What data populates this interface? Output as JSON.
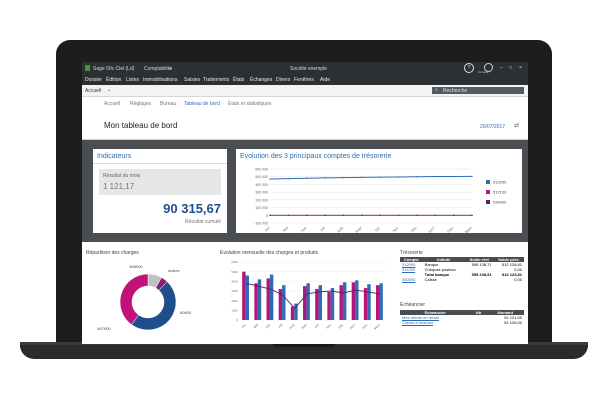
{
  "app": {
    "title": "Sage 50c Ciel (Ld)",
    "module": "Comptabilité",
    "company": "Société exemple",
    "help_icon": "help-icon",
    "user_label": "Compte",
    "colors": {
      "titlebar": "#2d3033",
      "accent_blue": "#2e6db4",
      "dark_panel": "#4a4d52"
    }
  },
  "menu": {
    "items": [
      "Dossier",
      "Édition",
      "Listes",
      "Immobilisations",
      "Saisies",
      "Traitements",
      "États",
      "Échanges",
      "Divers",
      "Fenêtres",
      "Aide"
    ]
  },
  "nav": {
    "dropdown": "Accueil",
    "search_placeholder": "Recherche"
  },
  "breadcrumb": {
    "items": [
      "Accueil",
      "Réglages",
      "Bureau",
      "Tableau de bord",
      "États et statistiques"
    ],
    "active_index": 3
  },
  "header": {
    "title": "Mon tableau de bord",
    "date": "20/07/2017"
  },
  "indicateurs": {
    "title": "Indicateurs",
    "month_label": "Résultat du mois",
    "month_value": "1 121,17",
    "cumul_value": "90 315,67",
    "cumul_label": "Résultat cumulé"
  },
  "treso_chart": {
    "title": "Evolution des 3 principaux comptes de trésorerie"
  },
  "charges": {
    "title": "Répartition des charges",
    "labels": [
      "Autres",
      "606000",
      "60600",
      "607000"
    ]
  },
  "evolution": {
    "title": "Evolution mensuelle des charges et produits"
  },
  "tresorerie_table": {
    "title": "Trésorerie",
    "headers": [
      "Compte",
      "Intitulé",
      "Solde réel",
      "Solde prév."
    ],
    "rows": [
      [
        "512000",
        "Banque",
        "595 138,71",
        "512 128,81"
      ],
      [
        "511000",
        "Chèques postaux",
        "",
        "0,00"
      ],
      [
        "",
        "Total banque",
        "595 238,51",
        "512 123,81"
      ],
      [
        "530000",
        "Caisse",
        "",
        "0,00"
      ]
    ]
  },
  "echeancier": {
    "title": "Echéancier",
    "headers": [
      "Échéancier",
      "Nb",
      "Montant"
    ],
    "rows": [
      [
        "Mes clients en retard",
        "",
        "51 121,00"
      ],
      [
        "Clients à relancer",
        "",
        "51 126,00"
      ]
    ]
  },
  "chart_data": [
    {
      "type": "line",
      "title": "Evolution des 3 principaux comptes de trésorerie",
      "x": [
        "Avr",
        "Mai",
        "Juin",
        "Juil",
        "Août",
        "Sept",
        "Oct",
        "Nov",
        "Déc",
        "2017",
        "Févr",
        "Mars"
      ],
      "ylim": [
        -100000,
        600000
      ],
      "yticks": [
        "600 000",
        "500 000",
        "400 000",
        "300 000",
        "200 000",
        "100 000",
        "0",
        "-100 000"
      ],
      "series": [
        {
          "name": "512000",
          "color": "#2e6db4",
          "values": [
            470000,
            475000,
            480000,
            485000,
            488000,
            492000,
            495000,
            497000,
            500000,
            502000,
            503000,
            505000
          ]
        },
        {
          "name": "512100",
          "color": "#b5157a",
          "values": [
            0,
            0,
            0,
            0,
            0,
            0,
            0,
            0,
            0,
            0,
            0,
            0
          ]
        },
        {
          "name": "530000",
          "color": "#5a2266",
          "values": [
            0,
            0,
            0,
            0,
            0,
            0,
            0,
            0,
            0,
            0,
            0,
            0
          ]
        }
      ]
    },
    {
      "type": "pie",
      "title": "Répartition des charges",
      "slices": [
        {
          "label": "Autres",
          "value": 8,
          "color": "#c0c0c0"
        },
        {
          "label": "606000",
          "value": 4,
          "color": "#8a1c7c"
        },
        {
          "label": "60600",
          "value": 48,
          "color": "#1f4e8c"
        },
        {
          "label": "607000",
          "value": 40,
          "color": "#c2127a"
        }
      ]
    },
    {
      "type": "bar",
      "title": "Evolution mensuelle des charges et produits",
      "categories": [
        "Avr",
        "Mai",
        "Juin",
        "Juil",
        "Août",
        "Sept",
        "Oct",
        "Nov",
        "Déc",
        "2017",
        "Févr",
        "Mars"
      ],
      "ylim": [
        0,
        6000
      ],
      "series": [
        {
          "name": "Charges",
          "color": "#b5157a",
          "values": [
            5000,
            3800,
            4300,
            3200,
            1400,
            3500,
            3200,
            2900,
            3600,
            3900,
            3300,
            3600
          ]
        },
        {
          "name": "Produits",
          "color": "#2e6db4",
          "values": [
            4600,
            4200,
            4700,
            3600,
            1700,
            3800,
            3600,
            3300,
            3900,
            4100,
            3700,
            3800
          ]
        },
        {
          "name": "Résultat",
          "color": "#5a2266",
          "values": [
            3800,
            3500,
            3200,
            2600,
            1200,
            2700,
            2900,
            3000,
            2800,
            3100,
            2900,
            2700
          ]
        }
      ]
    }
  ]
}
